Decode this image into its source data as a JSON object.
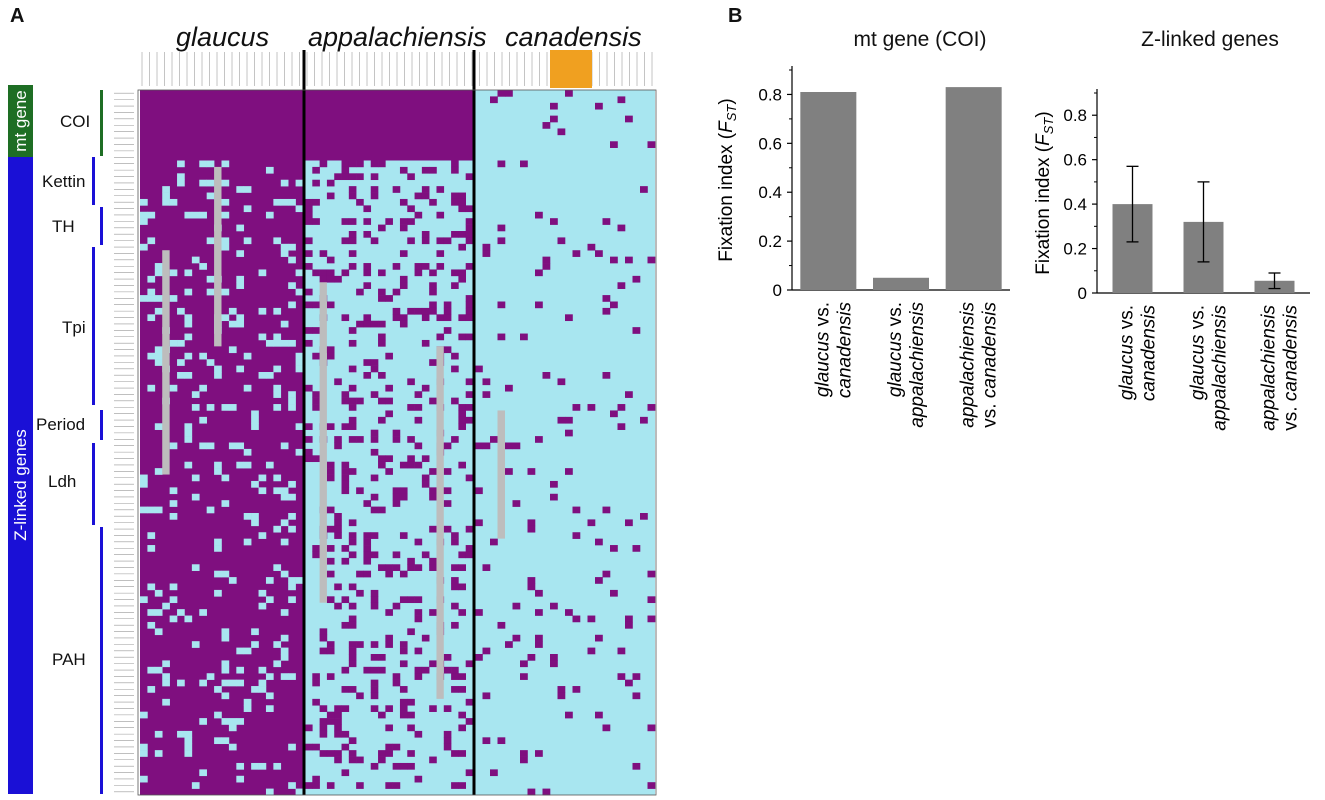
{
  "panel_a": {
    "letter": "A",
    "populations": [
      "glaucus",
      "appalachiensis",
      "canadensis"
    ],
    "sidebar": {
      "mt_label": "mt gene",
      "z_label": "Z-linked genes",
      "mt_color": "#1e6e24",
      "z_color": "#1a10d6"
    },
    "genes": [
      "COI",
      "Kettin",
      "TH",
      "Tpi",
      "Period",
      "Ldh",
      "PAH"
    ],
    "colors": {
      "purple": "#7f0f7f",
      "cyan": "#a8e6f0",
      "gray": "#bdbdbd",
      "black": "#111111",
      "orange": "#f0a020"
    }
  },
  "panel_b": {
    "letter": "B",
    "bar_color": "#808080"
  },
  "chart_data": [
    {
      "type": "bar",
      "title": "mt gene (COI)",
      "ylabel": "Fixation index (FST)",
      "ylabel_main": "Fixation index (",
      "ylabel_F": "F",
      "ylabel_sub": "ST",
      "ylabel_close": ")",
      "ylim": [
        0,
        0.9
      ],
      "yticks": [
        "0",
        "0.2",
        "0.4",
        "0.6",
        "0.8"
      ],
      "categories": [
        [
          "glaucus vs.",
          "canadensis"
        ],
        [
          "glaucus vs.",
          "appalachiensis"
        ],
        [
          "appalachiensis",
          "vs. canadensis"
        ]
      ],
      "values": [
        0.81,
        0.05,
        0.83
      ]
    },
    {
      "type": "bar",
      "title": "Z-linked genes",
      "ylabel": "Fixation index (FST)",
      "ylabel_main": "Fixation index (",
      "ylabel_F": "F",
      "ylabel_sub": "ST",
      "ylabel_close": ")",
      "ylim": [
        0,
        0.9
      ],
      "yticks": [
        "0",
        "0.2",
        "0.4",
        "0.6",
        "0.8"
      ],
      "categories": [
        [
          "glaucus vs.",
          "canadensis"
        ],
        [
          "glaucus vs.",
          "appalachiensis"
        ],
        [
          "appalachiensis",
          "vs. canadensis"
        ]
      ],
      "values": [
        0.4,
        0.32,
        0.055
      ],
      "errors": [
        0.17,
        0.18,
        0.035
      ]
    }
  ]
}
